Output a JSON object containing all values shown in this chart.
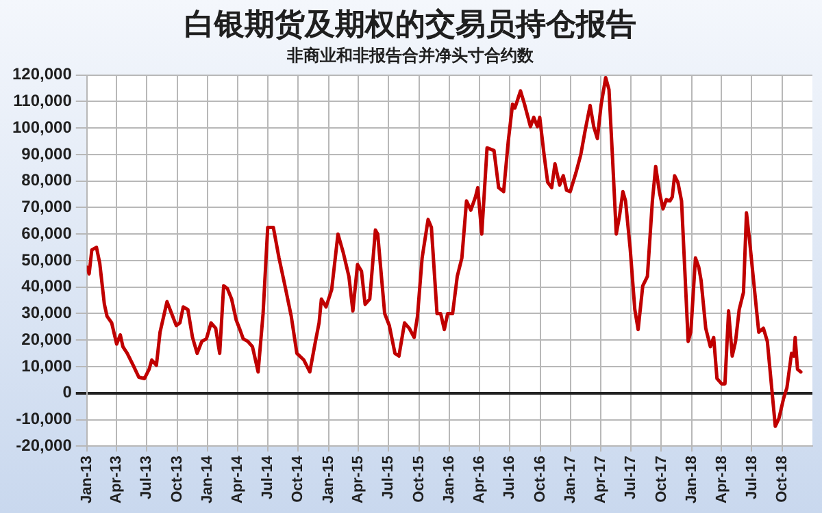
{
  "chart_data": {
    "type": "line",
    "title": "白银期货及期权的交易员持仓报告",
    "subtitle": "非商业和非报告合并净头寸合约数",
    "x": [
      "2013-01-01",
      "2013-01-08",
      "2013-01-16",
      "2013-01-30",
      "2013-02-09",
      "2013-02-23",
      "2013-03-03",
      "2013-03-17",
      "2013-04-01",
      "2013-04-12",
      "2013-04-20",
      "2013-05-03",
      "2013-05-21",
      "2013-06-07",
      "2013-06-24",
      "2013-07-08",
      "2013-07-16",
      "2013-07-30",
      "2013-08-10",
      "2013-08-21",
      "2013-08-31",
      "2013-09-14",
      "2013-09-28",
      "2013-10-09",
      "2013-10-19",
      "2013-11-02",
      "2013-11-16",
      "2013-11-30",
      "2013-12-14",
      "2013-12-28",
      "2014-01-11",
      "2014-01-25",
      "2014-02-06",
      "2014-02-18",
      "2014-03-01",
      "2014-03-14",
      "2014-03-28",
      "2014-04-08",
      "2014-04-18",
      "2014-05-02",
      "2014-05-16",
      "2014-06-02",
      "2014-06-17",
      "2014-07-01",
      "2014-07-18",
      "2014-08-04",
      "2014-08-22",
      "2014-09-10",
      "2014-09-27",
      "2014-10-18",
      "2014-11-05",
      "2014-11-22",
      "2014-12-03",
      "2014-12-10",
      "2014-12-24",
      "2015-01-10",
      "2015-01-29",
      "2015-02-14",
      "2015-03-03",
      "2015-03-15",
      "2015-03-29",
      "2015-04-10",
      "2015-04-21",
      "2015-05-05",
      "2015-05-22",
      "2015-05-29",
      "2015-06-19",
      "2015-07-03",
      "2015-07-20",
      "2015-08-01",
      "2015-08-18",
      "2015-09-01",
      "2015-09-16",
      "2015-09-26",
      "2015-10-10",
      "2015-10-28",
      "2015-11-07",
      "2015-11-24",
      "2015-12-05",
      "2015-12-16",
      "2015-12-26",
      "2016-01-10",
      "2016-01-24",
      "2016-02-07",
      "2016-02-21",
      "2016-03-05",
      "2016-03-19",
      "2016-03-26",
      "2016-04-07",
      "2016-04-23",
      "2016-05-14",
      "2016-05-28",
      "2016-06-12",
      "2016-06-26",
      "2016-07-09",
      "2016-07-16",
      "2016-08-02",
      "2016-08-14",
      "2016-09-01",
      "2016-09-11",
      "2016-09-22",
      "2016-09-29",
      "2016-10-12",
      "2016-10-23",
      "2016-11-04",
      "2016-11-14",
      "2016-11-28",
      "2016-12-09",
      "2016-12-19",
      "2016-12-30",
      "2017-01-16",
      "2017-01-31",
      "2017-02-13",
      "2017-02-28",
      "2017-03-11",
      "2017-03-22",
      "2017-04-02",
      "2017-04-16",
      "2017-04-26",
      "2017-05-07",
      "2017-05-18",
      "2017-05-28",
      "2017-06-07",
      "2017-06-15",
      "2017-06-29",
      "2017-07-13",
      "2017-07-23",
      "2017-08-06",
      "2017-08-20",
      "2017-09-04",
      "2017-09-14",
      "2017-09-25",
      "2017-10-06",
      "2017-10-16",
      "2017-10-27",
      "2017-11-03",
      "2017-11-10",
      "2017-11-20",
      "2017-12-01",
      "2017-12-11",
      "2017-12-21",
      "2017-12-29",
      "2018-01-12",
      "2018-01-22",
      "2018-01-29",
      "2018-02-12",
      "2018-02-26",
      "2018-03-08",
      "2018-03-18",
      "2018-04-01",
      "2018-04-11",
      "2018-04-22",
      "2018-05-03",
      "2018-05-13",
      "2018-05-24",
      "2018-06-06",
      "2018-06-15",
      "2018-06-24",
      "2018-07-08",
      "2018-07-22",
      "2018-08-05",
      "2018-08-17",
      "2018-08-29",
      "2018-09-10",
      "2018-09-21",
      "2018-10-05",
      "2018-10-15",
      "2018-10-29",
      "2018-11-05",
      "2018-11-09",
      "2018-11-16",
      "2018-11-26"
    ],
    "series": [
      {
        "color": "#c00000",
        "values": [
          47500,
          45000,
          54000,
          55000,
          49000,
          33500,
          29000,
          26500,
          18500,
          22000,
          17500,
          15000,
          10500,
          6000,
          5500,
          9000,
          12500,
          10500,
          23000,
          29000,
          34500,
          30000,
          25500,
          26500,
          32500,
          31500,
          21000,
          15000,
          19500,
          20500,
          26500,
          24500,
          15000,
          40500,
          39500,
          35500,
          27500,
          24000,
          20500,
          19500,
          17500,
          8000,
          30000,
          62500,
          62500,
          51000,
          40500,
          29000,
          15000,
          12500,
          8000,
          19500,
          26500,
          35500,
          32500,
          39000,
          60000,
          53000,
          44000,
          31000,
          48500,
          46000,
          33500,
          35500,
          61500,
          60000,
          30000,
          25500,
          15000,
          14000,
          26500,
          24500,
          21000,
          29000,
          51000,
          65500,
          62500,
          30000,
          30000,
          24000,
          30000,
          30000,
          44000,
          51000,
          72500,
          69000,
          74000,
          77500,
          60000,
          92500,
          91500,
          77500,
          76000,
          95000,
          109000,
          107500,
          114000,
          109000,
          100500,
          104000,
          100500,
          104000,
          90000,
          79500,
          77500,
          86500,
          78500,
          82000,
          76500,
          76000,
          83000,
          90000,
          99000,
          108500,
          100500,
          96000,
          108500,
          119000,
          114500,
          88000,
          60000,
          67000,
          76000,
          72500,
          54500,
          31500,
          24000,
          40500,
          44000,
          72500,
          85500,
          76000,
          69500,
          73000,
          72500,
          74000,
          82000,
          79500,
          72500,
          46000,
          19500,
          23000,
          51000,
          47500,
          42500,
          24500,
          17500,
          21000,
          5500,
          3500,
          3500,
          31000,
          14000,
          19500,
          31500,
          38000,
          68000,
          58000,
          40500,
          23000,
          24500,
          19500,
          3500,
          -12500,
          -9500,
          -2000,
          2000,
          15000,
          14000,
          21000,
          9000,
          8000
        ]
      }
    ],
    "xlim": [
      "2013-01-01",
      "2018-12-31"
    ],
    "xticks": [
      {
        "value": "2013-01-01",
        "label": "Jan-13"
      },
      {
        "value": "2013-04-01",
        "label": "Apr-13"
      },
      {
        "value": "2013-07-01",
        "label": "Jul-13"
      },
      {
        "value": "2013-10-01",
        "label": "Oct-13"
      },
      {
        "value": "2014-01-01",
        "label": "Jan-14"
      },
      {
        "value": "2014-04-01",
        "label": "Apr-14"
      },
      {
        "value": "2014-07-01",
        "label": "Jul-14"
      },
      {
        "value": "2014-10-01",
        "label": "Oct-14"
      },
      {
        "value": "2015-01-01",
        "label": "Jan-15"
      },
      {
        "value": "2015-04-01",
        "label": "Apr-15"
      },
      {
        "value": "2015-07-01",
        "label": "Jul-15"
      },
      {
        "value": "2015-10-01",
        "label": "Oct-15"
      },
      {
        "value": "2016-01-01",
        "label": "Jan-16"
      },
      {
        "value": "2016-04-01",
        "label": "Apr-16"
      },
      {
        "value": "2016-07-01",
        "label": "Jul-16"
      },
      {
        "value": "2016-10-01",
        "label": "Oct-16"
      },
      {
        "value": "2017-01-01",
        "label": "Jan-17"
      },
      {
        "value": "2017-04-01",
        "label": "Apr-17"
      },
      {
        "value": "2017-07-01",
        "label": "Jul-17"
      },
      {
        "value": "2017-10-01",
        "label": "Oct-17"
      },
      {
        "value": "2018-01-01",
        "label": "Jan-18"
      },
      {
        "value": "2018-04-01",
        "label": "Apr-18"
      },
      {
        "value": "2018-07-01",
        "label": "Jul-18"
      },
      {
        "value": "2018-10-01",
        "label": "Oct-18"
      }
    ],
    "ylim": [
      -20000,
      120000
    ],
    "yticks": [
      {
        "value": -20000,
        "label": "-20,000"
      },
      {
        "value": -10000,
        "label": "-10,000"
      },
      0,
      {
        "value": 10000,
        "label": "10,000"
      },
      {
        "value": 20000,
        "label": "20,000"
      },
      {
        "value": 30000,
        "label": "30,000"
      },
      {
        "value": 40000,
        "label": "40,000"
      },
      {
        "value": 50000,
        "label": "50,000"
      },
      {
        "value": 60000,
        "label": "60,000"
      },
      {
        "value": 70000,
        "label": "70,000"
      },
      {
        "value": 80000,
        "label": "80,000"
      },
      {
        "value": 90000,
        "label": "90,000"
      },
      {
        "value": 100000,
        "label": "100,000"
      },
      {
        "value": 110000,
        "label": "110,000"
      },
      {
        "value": 120000,
        "label": "120,000"
      }
    ],
    "grid": true,
    "legend": false,
    "marker": "none",
    "line_style": "solid"
  }
}
